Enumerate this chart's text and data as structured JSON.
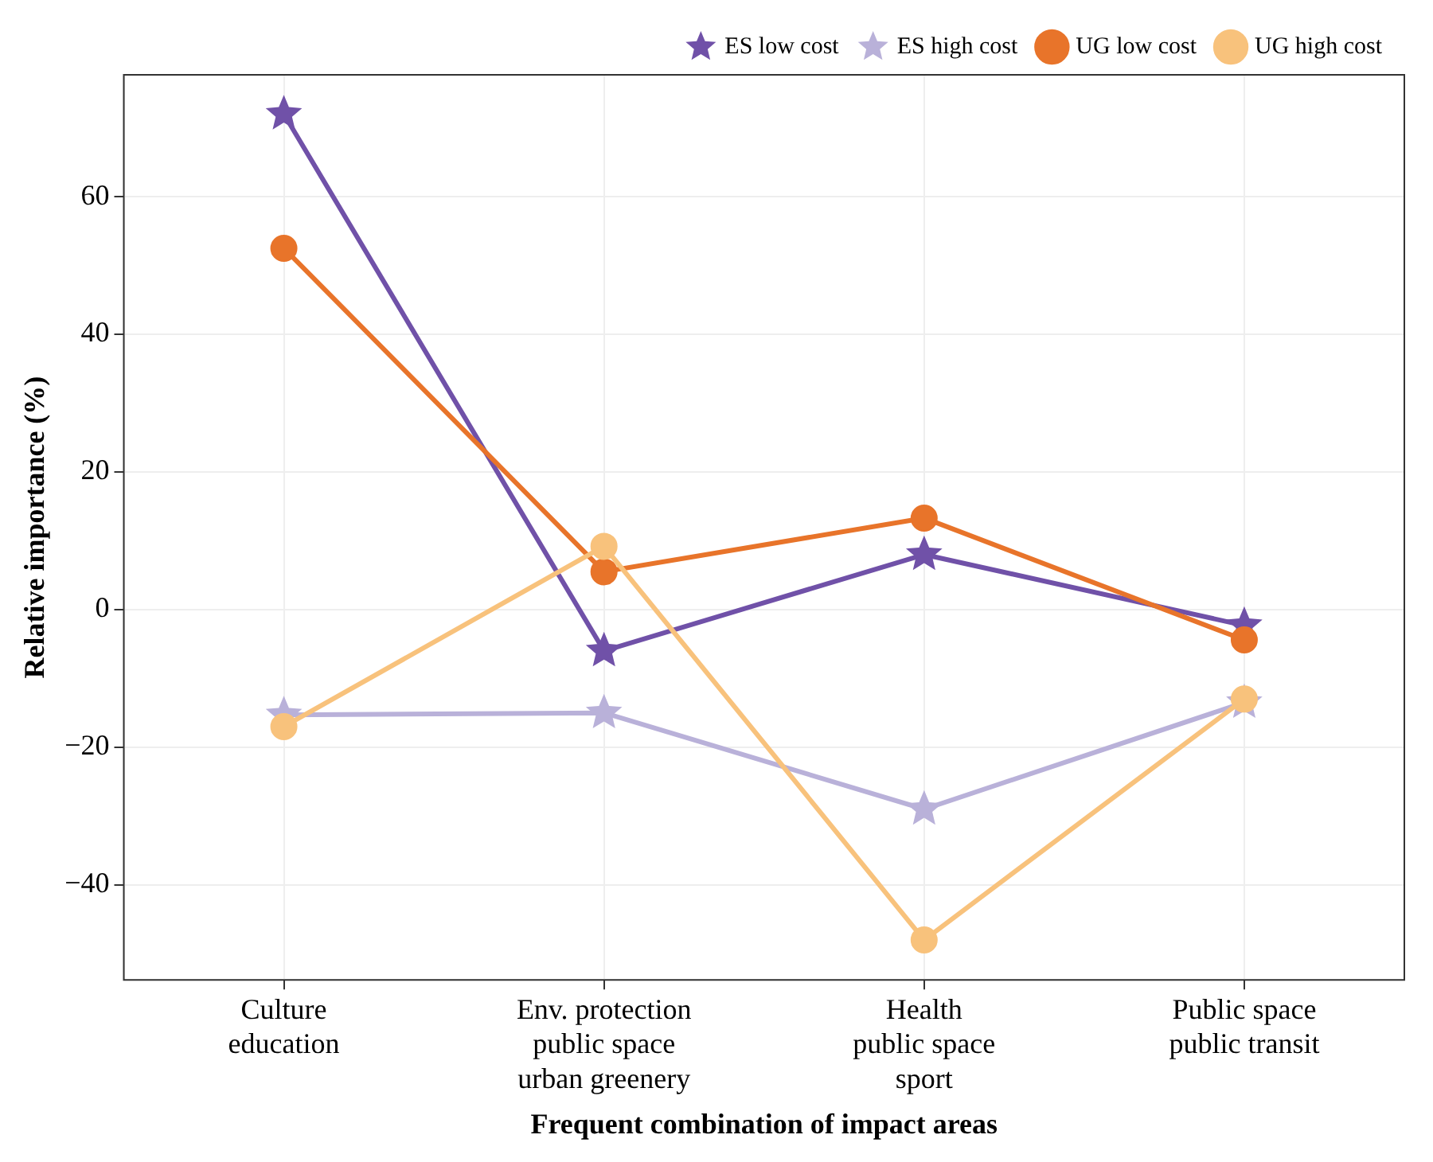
{
  "chart_data": {
    "type": "line",
    "xlabel": "Frequent combination of impact areas",
    "ylabel": "Relative importance (%)",
    "categories": [
      "Culture\neducation",
      "Env. protection\npublic space\nurban greenery",
      "Health\npublic space\nsport",
      "Public space\npublic transit"
    ],
    "series": [
      {
        "name": "ES low cost",
        "color": "#7051a8",
        "marker": "star",
        "values": [
          72,
          -6,
          8,
          -2.3
        ]
      },
      {
        "name": "ES high cost",
        "color": "#b9b1d9",
        "marker": "star",
        "values": [
          -15.3,
          -15,
          -29,
          -13.5
        ]
      },
      {
        "name": "UG low cost",
        "color": "#e8742a",
        "marker": "circle",
        "values": [
          52.5,
          5.5,
          13.3,
          -4.4
        ]
      },
      {
        "name": "UG high cost",
        "color": "#f8c27c",
        "marker": "circle",
        "values": [
          -17,
          9.2,
          -48,
          -13
        ]
      }
    ],
    "ylim": [
      -53.8,
      77.7
    ],
    "yticks": [
      {
        "value": -40,
        "label": "−40"
      },
      {
        "value": -20,
        "label": "−20"
      },
      0,
      20,
      40,
      60
    ],
    "grid": true,
    "legend": "top right"
  }
}
